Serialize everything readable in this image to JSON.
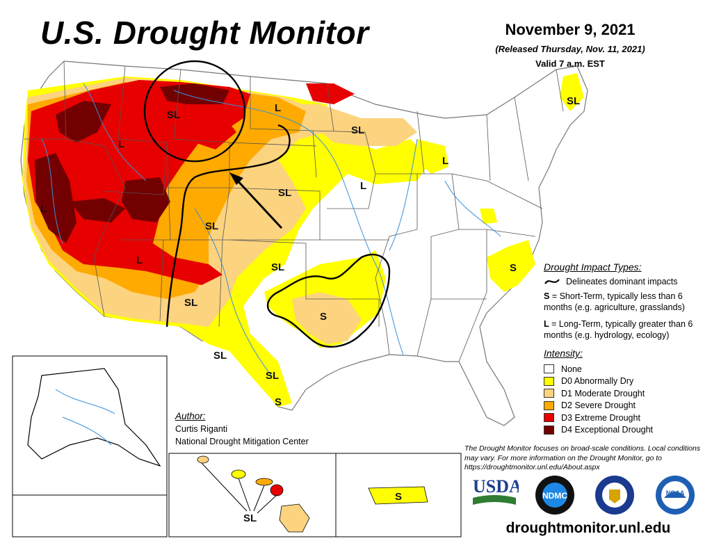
{
  "title": "U.S. Drought Monitor",
  "date": "November 9, 2021",
  "released": "(Released Thursday, Nov. 11, 2021)",
  "valid": "Valid 7 a.m. EST",
  "map_labels": {
    "sl": "SL",
    "l": "L",
    "s": "S"
  },
  "legend": {
    "impact_heading": "Drought Impact Types:",
    "delineates": "Delineates dominant impacts",
    "s_prefix": "S",
    "s_text": " = Short-Term, typically less than 6 months (e.g. agriculture, grasslands)",
    "l_prefix": "L",
    "l_text": " = Long-Term, typically greater than 6 months (e.g. hydrology, ecology)",
    "intensity_heading": "Intensity:",
    "categories": [
      {
        "label": "None",
        "color": "#ffffff"
      },
      {
        "label": "D0 Abnormally Dry",
        "color": "#ffff00"
      },
      {
        "label": "D1 Moderate Drought",
        "color": "#fcd37f"
      },
      {
        "label": "D2 Severe Drought",
        "color": "#ffaa00"
      },
      {
        "label": "D3 Extreme Drought",
        "color": "#e60000"
      },
      {
        "label": "D4 Exceptional Drought",
        "color": "#730000"
      }
    ]
  },
  "author": {
    "label": "Author:",
    "name": "Curtis Riganti",
    "org": "National Drought Mitigation Center"
  },
  "note": "The Drought Monitor focuses on broad-scale conditions. Local conditions may vary. For more information on the Drought Monitor, go to https://droughtmonitor.unl.edu/About.aspx",
  "logos": {
    "usda": "USDA",
    "ndmc": "NDMC",
    "noaa": "NOAA"
  },
  "url": "droughtmonitor.unl.edu"
}
